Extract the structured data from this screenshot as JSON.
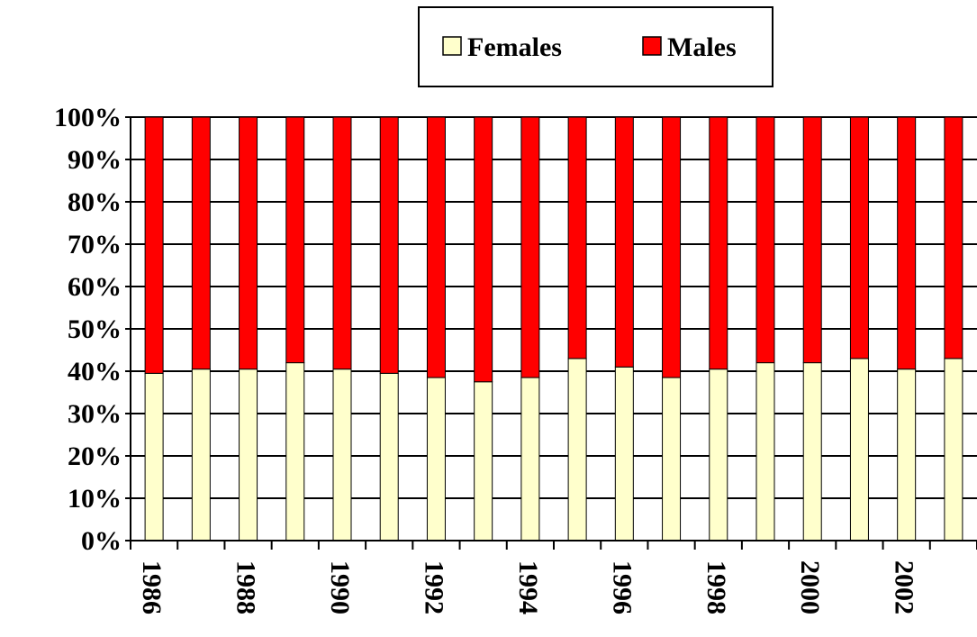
{
  "chart_data": {
    "type": "stacked_bar",
    "categories": [
      "1986",
      null,
      "1988",
      null,
      "1990",
      null,
      "1992",
      null,
      "1994",
      null,
      "1996",
      null,
      "1998",
      null,
      "2000",
      null,
      "2002",
      null
    ],
    "series": [
      {
        "name": "Females",
        "color": "#ffffcc",
        "values": [
          39.5,
          40.5,
          40.5,
          42,
          40.5,
          39.5,
          38.5,
          37.5,
          38.5,
          43,
          41,
          38.5,
          40.5,
          42,
          42,
          43,
          40.5,
          43
        ]
      },
      {
        "name": "Males",
        "color": "#ff0000",
        "values": [
          60.5,
          59.5,
          59.5,
          58,
          59.5,
          60.5,
          61.5,
          62.5,
          61.5,
          57,
          59,
          61.5,
          59.5,
          58,
          58,
          57,
          59.5,
          57
        ]
      }
    ],
    "ylim": [
      0,
      100
    ],
    "yticks": [
      {
        "value": 0,
        "label": "0%"
      },
      {
        "value": 10,
        "label": "10%"
      },
      {
        "value": 20,
        "label": "20%"
      },
      {
        "value": 30,
        "label": "30%"
      },
      {
        "value": 40,
        "label": "40%"
      },
      {
        "value": 50,
        "label": "50%"
      },
      {
        "value": 60,
        "label": "60%"
      },
      {
        "value": 70,
        "label": "70%"
      },
      {
        "value": 80,
        "label": "80%"
      },
      {
        "value": 90,
        "label": "90%"
      },
      {
        "value": 100,
        "label": "100%"
      }
    ],
    "grid": true,
    "legend": "top"
  }
}
